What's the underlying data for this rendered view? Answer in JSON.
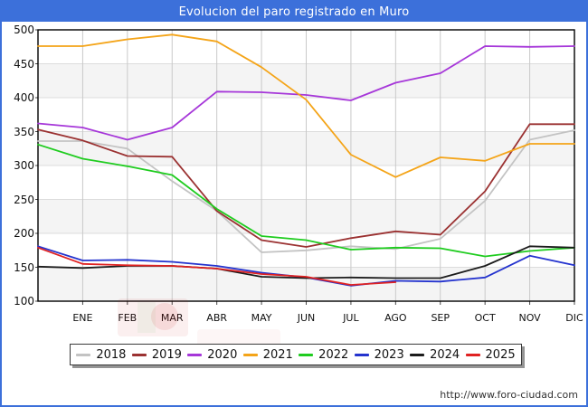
{
  "title": "Evolucion del paro registrado en Muro",
  "footer_url": "http://www.foro-ciudad.com",
  "colors": {
    "frame_blue": "#3C70DA",
    "title_text": "#FFFFFF",
    "band_gray": "#F4F4F4",
    "grid_vertical": "#C9C9C9",
    "grid_horizontal": "#DCDCDC",
    "axis_black": "#000000"
  },
  "chart_data": {
    "type": "line",
    "title": "Evolucion del paro registrado en Muro",
    "xlabel": "",
    "ylabel": "",
    "x_tick_labels": [
      "ENE",
      "FEB",
      "MAR",
      "ABR",
      "MAY",
      "JUN",
      "JUL",
      "AGO",
      "SEP",
      "OCT",
      "NOV",
      "DIC"
    ],
    "y_tick_labels": [
      "500",
      "450",
      "400",
      "350",
      "300",
      "250",
      "200",
      "150",
      "100"
    ],
    "ylim": [
      100,
      500
    ],
    "grid": true,
    "banded_background": true,
    "legend_position": "bottom",
    "series_note": "values[0] = line start at left axis edge; values[1..12] = ENE..DIC; null = no data drawn",
    "series": [
      {
        "name": "2018",
        "color": "#C3C3C3",
        "values": [
          336,
          336,
          325,
          277,
          233,
          172,
          175,
          181,
          177,
          192,
          248,
          338,
          352
        ]
      },
      {
        "name": "2019",
        "color": "#9B3232",
        "values": [
          353,
          337,
          314,
          313,
          233,
          190,
          180,
          193,
          203,
          198,
          262,
          361,
          361
        ]
      },
      {
        "name": "2020",
        "color": "#A637D9",
        "values": [
          362,
          356,
          338,
          356,
          409,
          408,
          404,
          396,
          422,
          436,
          476,
          475,
          476
        ]
      },
      {
        "name": "2021",
        "color": "#F4A418",
        "values": [
          476,
          476,
          486,
          493,
          483,
          445,
          397,
          316,
          283,
          312,
          307,
          332,
          332
        ]
      },
      {
        "name": "2022",
        "color": "#1FCC1F",
        "values": [
          331,
          310,
          299,
          286,
          236,
          196,
          190,
          176,
          179,
          178,
          166,
          174,
          179
        ]
      },
      {
        "name": "2023",
        "color": "#2433CE",
        "values": [
          181,
          160,
          161,
          158,
          152,
          142,
          135,
          123,
          130,
          129,
          135,
          167,
          153
        ]
      },
      {
        "name": "2024",
        "color": "#1C1C1C",
        "values": [
          151,
          149,
          152,
          152,
          148,
          136,
          134,
          135,
          134,
          134,
          152,
          181,
          179
        ]
      },
      {
        "name": "2025",
        "color": "#E02222",
        "values": [
          179,
          155,
          153,
          152,
          148,
          140,
          136,
          124,
          128,
          null,
          null,
          null,
          null
        ]
      }
    ]
  }
}
